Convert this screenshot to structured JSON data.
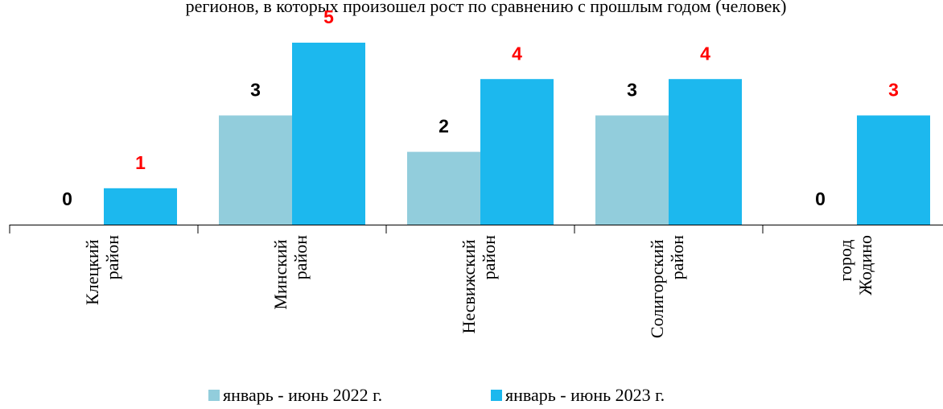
{
  "chart_data": {
    "type": "bar",
    "title": "регионов,  в которых произошел рост по сравнению с прошлым годом (человек)",
    "categories": [
      "Клецкий район",
      "Минский район",
      "Несвижский район",
      "Солигорский район",
      "город Жодино"
    ],
    "series": [
      {
        "name": "январь - июнь 2022 г.",
        "color": "#92cddc",
        "label_color": "#000000",
        "values": [
          0,
          3,
          2,
          3,
          0
        ]
      },
      {
        "name": "январь - июнь 2023 г.",
        "color": "#1cb8ee",
        "label_color": "#ff0000",
        "values": [
          1,
          5,
          4,
          4,
          3
        ]
      }
    ],
    "ylim": [
      0,
      5
    ]
  }
}
